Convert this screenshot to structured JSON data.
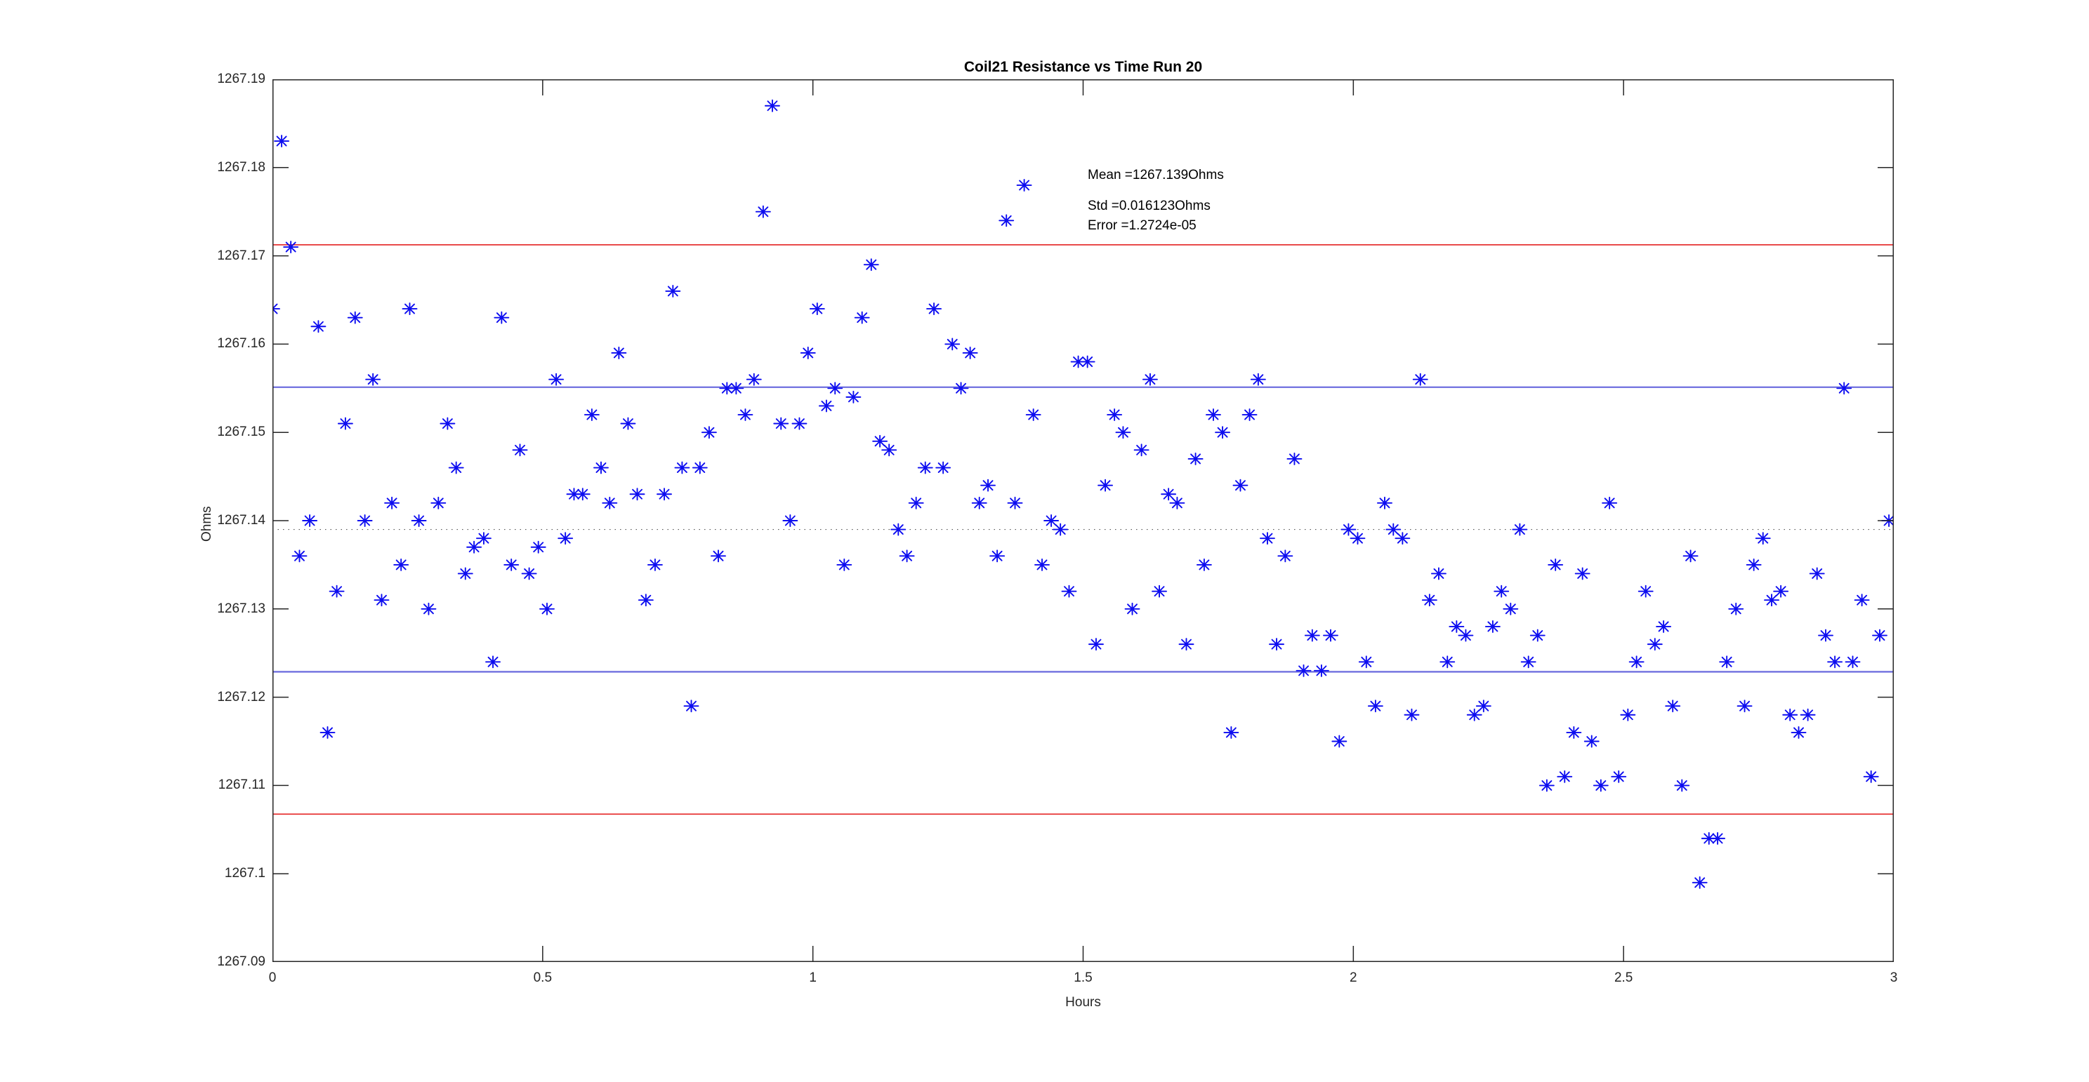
{
  "title": "Coil21 Resistance vs Time Run 20",
  "annotation": {
    "mean_label": "Mean =1267.139Ohms",
    "std_label": "Std =0.016123Ohms",
    "error_label": "Error =1.2724e-05"
  },
  "chart_data": {
    "type": "scatter",
    "title": "Coil21 Resistance vs Time Run 20",
    "xlabel": "Hours",
    "ylabel": "Ohms",
    "xlim": [
      0,
      3
    ],
    "ylim": [
      1267.09,
      1267.19
    ],
    "grid": false,
    "xticks": [
      0,
      0.5,
      1,
      1.5,
      2,
      2.5,
      3
    ],
    "xtick_labels": [
      "0",
      "0.5",
      "1",
      "1.5",
      "2",
      "2.5",
      "3"
    ],
    "yticks": [
      1267.09,
      1267.1,
      1267.11,
      1267.12,
      1267.13,
      1267.14,
      1267.15,
      1267.16,
      1267.17,
      1267.18,
      1267.19
    ],
    "ytick_labels": [
      "1267.09",
      "1267.1",
      "1267.11",
      "1267.12",
      "1267.13",
      "1267.14",
      "1267.15",
      "1267.16",
      "1267.17",
      "1267.18",
      "1267.19"
    ],
    "axis_color": "#262626",
    "marker": {
      "style": "asterisk",
      "color": "#0d0df0"
    },
    "stats": {
      "mean_ohms": 1267.139,
      "std_ohms": 0.016123,
      "error": 1.2724e-05
    },
    "reference_lines": [
      {
        "name": "mean",
        "value": 1267.139,
        "style": "dotted",
        "color": "#555555",
        "width": 1.2
      },
      {
        "name": "mean-plus-std",
        "value": 1267.15512,
        "style": "solid",
        "color": "#7676e0",
        "width": 2.4
      },
      {
        "name": "mean-minus-std",
        "value": 1267.12288,
        "style": "solid",
        "color": "#7676e0",
        "width": 2.4
      },
      {
        "name": "mean-plus-2std",
        "value": 1267.17125,
        "style": "solid",
        "color": "#e63232",
        "width": 1.8
      },
      {
        "name": "mean-minus-2std",
        "value": 1267.10675,
        "style": "solid",
        "color": "#e63232",
        "width": 1.8
      }
    ],
    "points": [
      [
        0.0,
        1267.164
      ],
      [
        0.017,
        1267.183
      ],
      [
        0.034,
        1267.171
      ],
      [
        0.05,
        1267.136
      ],
      [
        0.069,
        1267.14
      ],
      [
        0.085,
        1267.162
      ],
      [
        0.102,
        1267.116
      ],
      [
        0.119,
        1267.132
      ],
      [
        0.135,
        1267.151
      ],
      [
        0.153,
        1267.163
      ],
      [
        0.171,
        1267.14
      ],
      [
        0.186,
        1267.156
      ],
      [
        0.202,
        1267.131
      ],
      [
        0.221,
        1267.142
      ],
      [
        0.238,
        1267.135
      ],
      [
        0.254,
        1267.164
      ],
      [
        0.271,
        1267.14
      ],
      [
        0.289,
        1267.13
      ],
      [
        0.307,
        1267.142
      ],
      [
        0.324,
        1267.151
      ],
      [
        0.34,
        1267.146
      ],
      [
        0.357,
        1267.134
      ],
      [
        0.373,
        1267.137
      ],
      [
        0.391,
        1267.138
      ],
      [
        0.408,
        1267.124
      ],
      [
        0.424,
        1267.163
      ],
      [
        0.442,
        1267.135
      ],
      [
        0.458,
        1267.148
      ],
      [
        0.475,
        1267.134
      ],
      [
        0.492,
        1267.137
      ],
      [
        0.508,
        1267.13
      ],
      [
        0.525,
        1267.156
      ],
      [
        0.542,
        1267.138
      ],
      [
        0.558,
        1267.143
      ],
      [
        0.574,
        1267.143
      ],
      [
        0.591,
        1267.152
      ],
      [
        0.608,
        1267.146
      ],
      [
        0.624,
        1267.142
      ],
      [
        0.641,
        1267.159
      ],
      [
        0.658,
        1267.151
      ],
      [
        0.675,
        1267.143
      ],
      [
        0.691,
        1267.131
      ],
      [
        0.708,
        1267.135
      ],
      [
        0.725,
        1267.143
      ],
      [
        0.741,
        1267.166
      ],
      [
        0.758,
        1267.146
      ],
      [
        0.775,
        1267.119
      ],
      [
        0.791,
        1267.146
      ],
      [
        0.808,
        1267.15
      ],
      [
        0.825,
        1267.136
      ],
      [
        0.841,
        1267.155
      ],
      [
        0.858,
        1267.155
      ],
      [
        0.875,
        1267.152
      ],
      [
        0.891,
        1267.156
      ],
      [
        0.908,
        1267.175
      ],
      [
        0.925,
        1267.187
      ],
      [
        0.941,
        1267.151
      ],
      [
        0.958,
        1267.14
      ],
      [
        0.975,
        1267.151
      ],
      [
        0.991,
        1267.159
      ],
      [
        1.008,
        1267.164
      ],
      [
        1.025,
        1267.153
      ],
      [
        1.041,
        1267.155
      ],
      [
        1.058,
        1267.135
      ],
      [
        1.075,
        1267.154
      ],
      [
        1.091,
        1267.163
      ],
      [
        1.108,
        1267.169
      ],
      [
        1.124,
        1267.149
      ],
      [
        1.141,
        1267.148
      ],
      [
        1.158,
        1267.139
      ],
      [
        1.174,
        1267.136
      ],
      [
        1.191,
        1267.142
      ],
      [
        1.208,
        1267.146
      ],
      [
        1.224,
        1267.164
      ],
      [
        1.241,
        1267.146
      ],
      [
        1.258,
        1267.16
      ],
      [
        1.274,
        1267.155
      ],
      [
        1.291,
        1267.159
      ],
      [
        1.308,
        1267.142
      ],
      [
        1.324,
        1267.144
      ],
      [
        1.341,
        1267.136
      ],
      [
        1.358,
        1267.174
      ],
      [
        1.374,
        1267.142
      ],
      [
        1.391,
        1267.178
      ],
      [
        1.408,
        1267.152
      ],
      [
        1.424,
        1267.135
      ],
      [
        1.441,
        1267.14
      ],
      [
        1.458,
        1267.139
      ],
      [
        1.474,
        1267.132
      ],
      [
        1.491,
        1267.158
      ],
      [
        1.508,
        1267.158
      ],
      [
        1.524,
        1267.126
      ],
      [
        1.541,
        1267.144
      ],
      [
        1.558,
        1267.152
      ],
      [
        1.574,
        1267.15
      ],
      [
        1.591,
        1267.13
      ],
      [
        1.608,
        1267.148
      ],
      [
        1.624,
        1267.156
      ],
      [
        1.641,
        1267.132
      ],
      [
        1.658,
        1267.143
      ],
      [
        1.674,
        1267.142
      ],
      [
        1.691,
        1267.126
      ],
      [
        1.708,
        1267.147
      ],
      [
        1.724,
        1267.135
      ],
      [
        1.741,
        1267.152
      ],
      [
        1.758,
        1267.15
      ],
      [
        1.774,
        1267.116
      ],
      [
        1.791,
        1267.144
      ],
      [
        1.808,
        1267.152
      ],
      [
        1.824,
        1267.156
      ],
      [
        1.841,
        1267.138
      ],
      [
        1.858,
        1267.126
      ],
      [
        1.874,
        1267.136
      ],
      [
        1.891,
        1267.147
      ],
      [
        1.908,
        1267.123
      ],
      [
        1.924,
        1267.127
      ],
      [
        1.941,
        1267.123
      ],
      [
        1.958,
        1267.127
      ],
      [
        1.974,
        1267.115
      ],
      [
        1.991,
        1267.139
      ],
      [
        2.008,
        1267.138
      ],
      [
        2.024,
        1267.124
      ],
      [
        2.041,
        1267.119
      ],
      [
        2.058,
        1267.142
      ],
      [
        2.074,
        1267.139
      ],
      [
        2.091,
        1267.138
      ],
      [
        2.108,
        1267.118
      ],
      [
        2.124,
        1267.156
      ],
      [
        2.141,
        1267.131
      ],
      [
        2.158,
        1267.134
      ],
      [
        2.174,
        1267.124
      ],
      [
        2.191,
        1267.128
      ],
      [
        2.208,
        1267.127
      ],
      [
        2.224,
        1267.118
      ],
      [
        2.241,
        1267.119
      ],
      [
        2.258,
        1267.128
      ],
      [
        2.274,
        1267.132
      ],
      [
        2.291,
        1267.13
      ],
      [
        2.308,
        1267.139
      ],
      [
        2.324,
        1267.124
      ],
      [
        2.341,
        1267.127
      ],
      [
        2.358,
        1267.11
      ],
      [
        2.374,
        1267.135
      ],
      [
        2.391,
        1267.111
      ],
      [
        2.408,
        1267.116
      ],
      [
        2.424,
        1267.134
      ],
      [
        2.441,
        1267.115
      ],
      [
        2.458,
        1267.11
      ],
      [
        2.474,
        1267.142
      ],
      [
        2.491,
        1267.111
      ],
      [
        2.508,
        1267.118
      ],
      [
        2.524,
        1267.124
      ],
      [
        2.541,
        1267.132
      ],
      [
        2.558,
        1267.126
      ],
      [
        2.574,
        1267.128
      ],
      [
        2.591,
        1267.119
      ],
      [
        2.608,
        1267.11
      ],
      [
        2.624,
        1267.136
      ],
      [
        2.641,
        1267.099
      ],
      [
        2.658,
        1267.104
      ],
      [
        2.674,
        1267.104
      ],
      [
        2.691,
        1267.124
      ],
      [
        2.708,
        1267.13
      ],
      [
        2.724,
        1267.119
      ],
      [
        2.741,
        1267.135
      ],
      [
        2.758,
        1267.138
      ],
      [
        2.774,
        1267.131
      ],
      [
        2.791,
        1267.132
      ],
      [
        2.808,
        1267.118
      ],
      [
        2.824,
        1267.116
      ],
      [
        2.841,
        1267.118
      ],
      [
        2.858,
        1267.134
      ],
      [
        2.874,
        1267.127
      ],
      [
        2.891,
        1267.124
      ],
      [
        2.908,
        1267.155
      ],
      [
        2.924,
        1267.124
      ],
      [
        2.941,
        1267.131
      ],
      [
        2.958,
        1267.111
      ],
      [
        2.974,
        1267.127
      ],
      [
        2.991,
        1267.14
      ]
    ]
  }
}
